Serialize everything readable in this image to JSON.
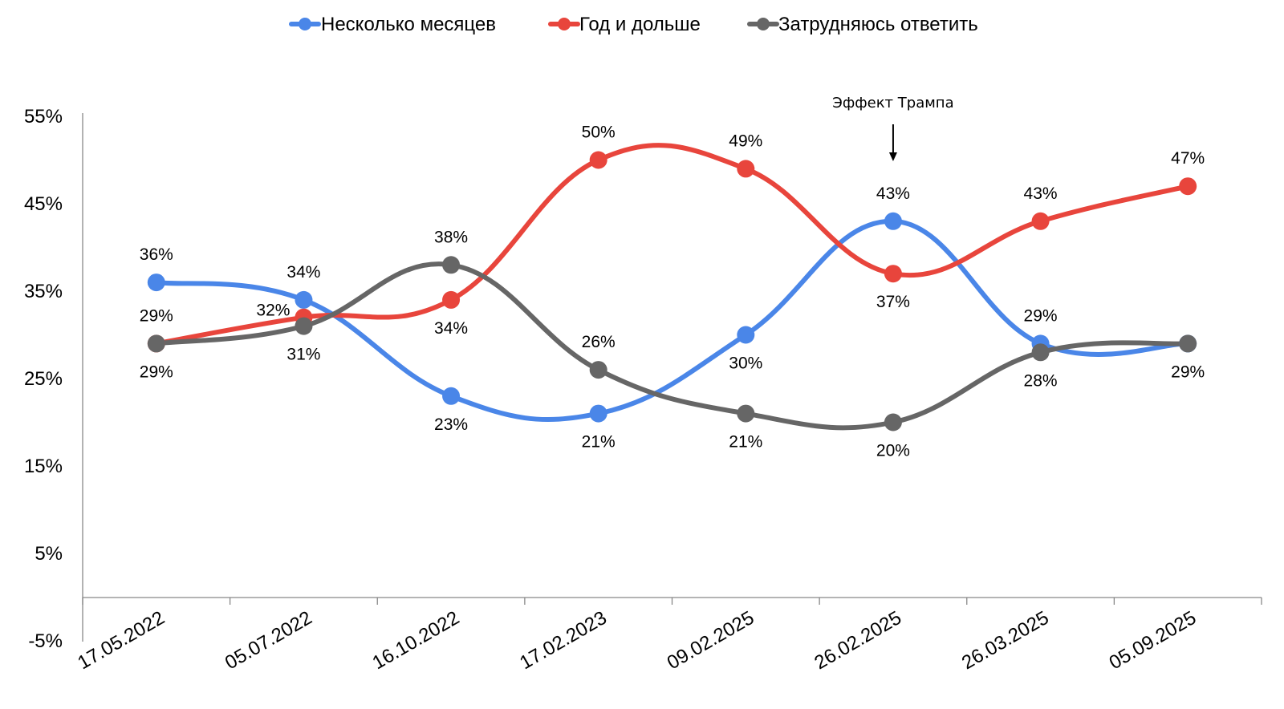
{
  "chart_data": {
    "type": "line",
    "categories": [
      "17.05.2022",
      "05.07.2022",
      "16.10.2022",
      "17.02.2023",
      "09.02.2025",
      "26.02.2025",
      "26.03.2025",
      "05.09.2025"
    ],
    "y_ticks": [
      "55%",
      "45%",
      "35%",
      "25%",
      "15%",
      "5%",
      "-5%"
    ],
    "ylim": [
      -5,
      55
    ],
    "grid": false,
    "legend_position": "top-center",
    "series": [
      {
        "name": "Несколько месяцев",
        "color": "#4A86E8",
        "values": [
          36,
          34,
          23,
          21,
          30,
          43,
          29,
          29
        ],
        "labels": [
          "36%",
          "34%",
          "23%",
          "21%",
          "30%",
          "43%",
          "29%",
          ""
        ]
      },
      {
        "name": "Год и дольше",
        "color": "#E8453C",
        "values": [
          29,
          32,
          34,
          50,
          49,
          37,
          43,
          47
        ],
        "labels": [
          "",
          "32%",
          "34%",
          "50%",
          "49%",
          "37%",
          "43%",
          "47%"
        ]
      },
      {
        "name": "Затрудняюсь ответить",
        "color": "#666666",
        "values": [
          29,
          31,
          38,
          26,
          21,
          20,
          28,
          29
        ],
        "labels": [
          "29%",
          "31%",
          "38%",
          "26%",
          "21%",
          "20%",
          "28%",
          "29%"
        ]
      }
    ],
    "top_labels": [
      "29%",
      ""
    ],
    "annotation": {
      "text": "Эффект Трампа",
      "category_index": 5
    }
  }
}
